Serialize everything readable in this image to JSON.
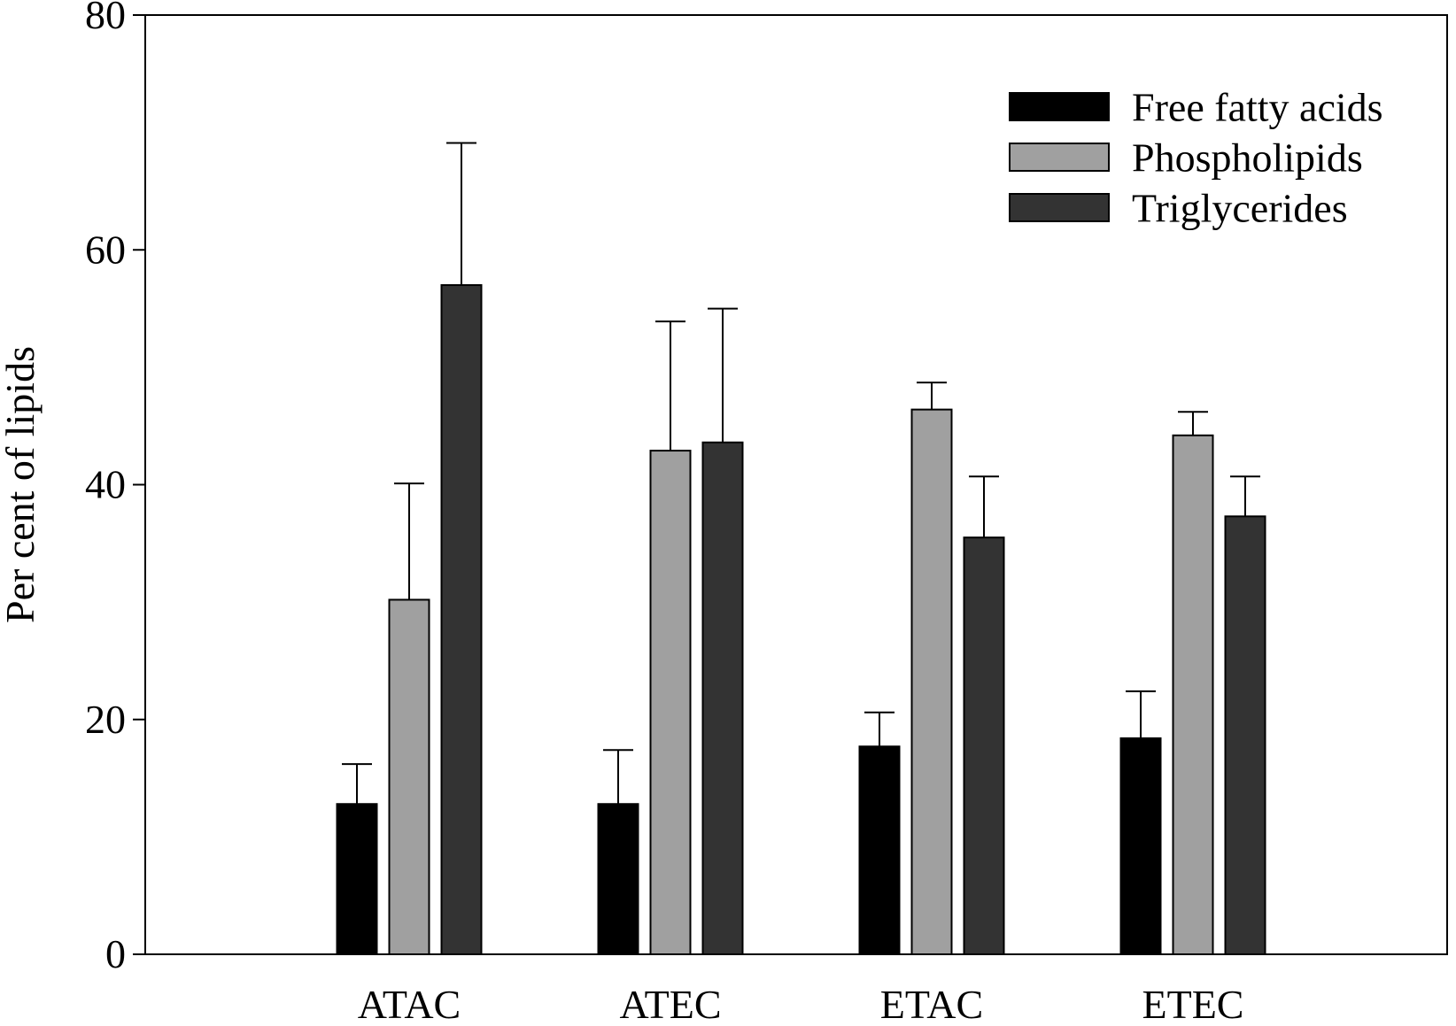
{
  "chart_data": {
    "type": "bar",
    "title": "",
    "xlabel": "",
    "ylabel": "Per cent of lipids",
    "ylim": [
      0,
      80
    ],
    "yticks": [
      0,
      20,
      40,
      60,
      80
    ],
    "grid": false,
    "legend_position": "top-right",
    "categories": [
      "ATAC",
      "ATEC",
      "ETAC",
      "ETEC"
    ],
    "series": [
      {
        "name": "Free fatty acids",
        "color": "#000000",
        "values": [
          12.8,
          12.8,
          17.7,
          18.4
        ],
        "error": [
          3.4,
          4.6,
          2.9,
          4.0
        ]
      },
      {
        "name": "Phospholipids",
        "color": "#a0a0a0",
        "values": [
          30.2,
          42.9,
          46.4,
          44.2
        ],
        "error": [
          9.9,
          11.0,
          2.3,
          2.0
        ]
      },
      {
        "name": "Triglycerides",
        "color": "#333333",
        "values": [
          57.0,
          43.6,
          35.5,
          37.3
        ],
        "error": [
          12.1,
          11.4,
          5.2,
          3.4
        ]
      }
    ]
  }
}
